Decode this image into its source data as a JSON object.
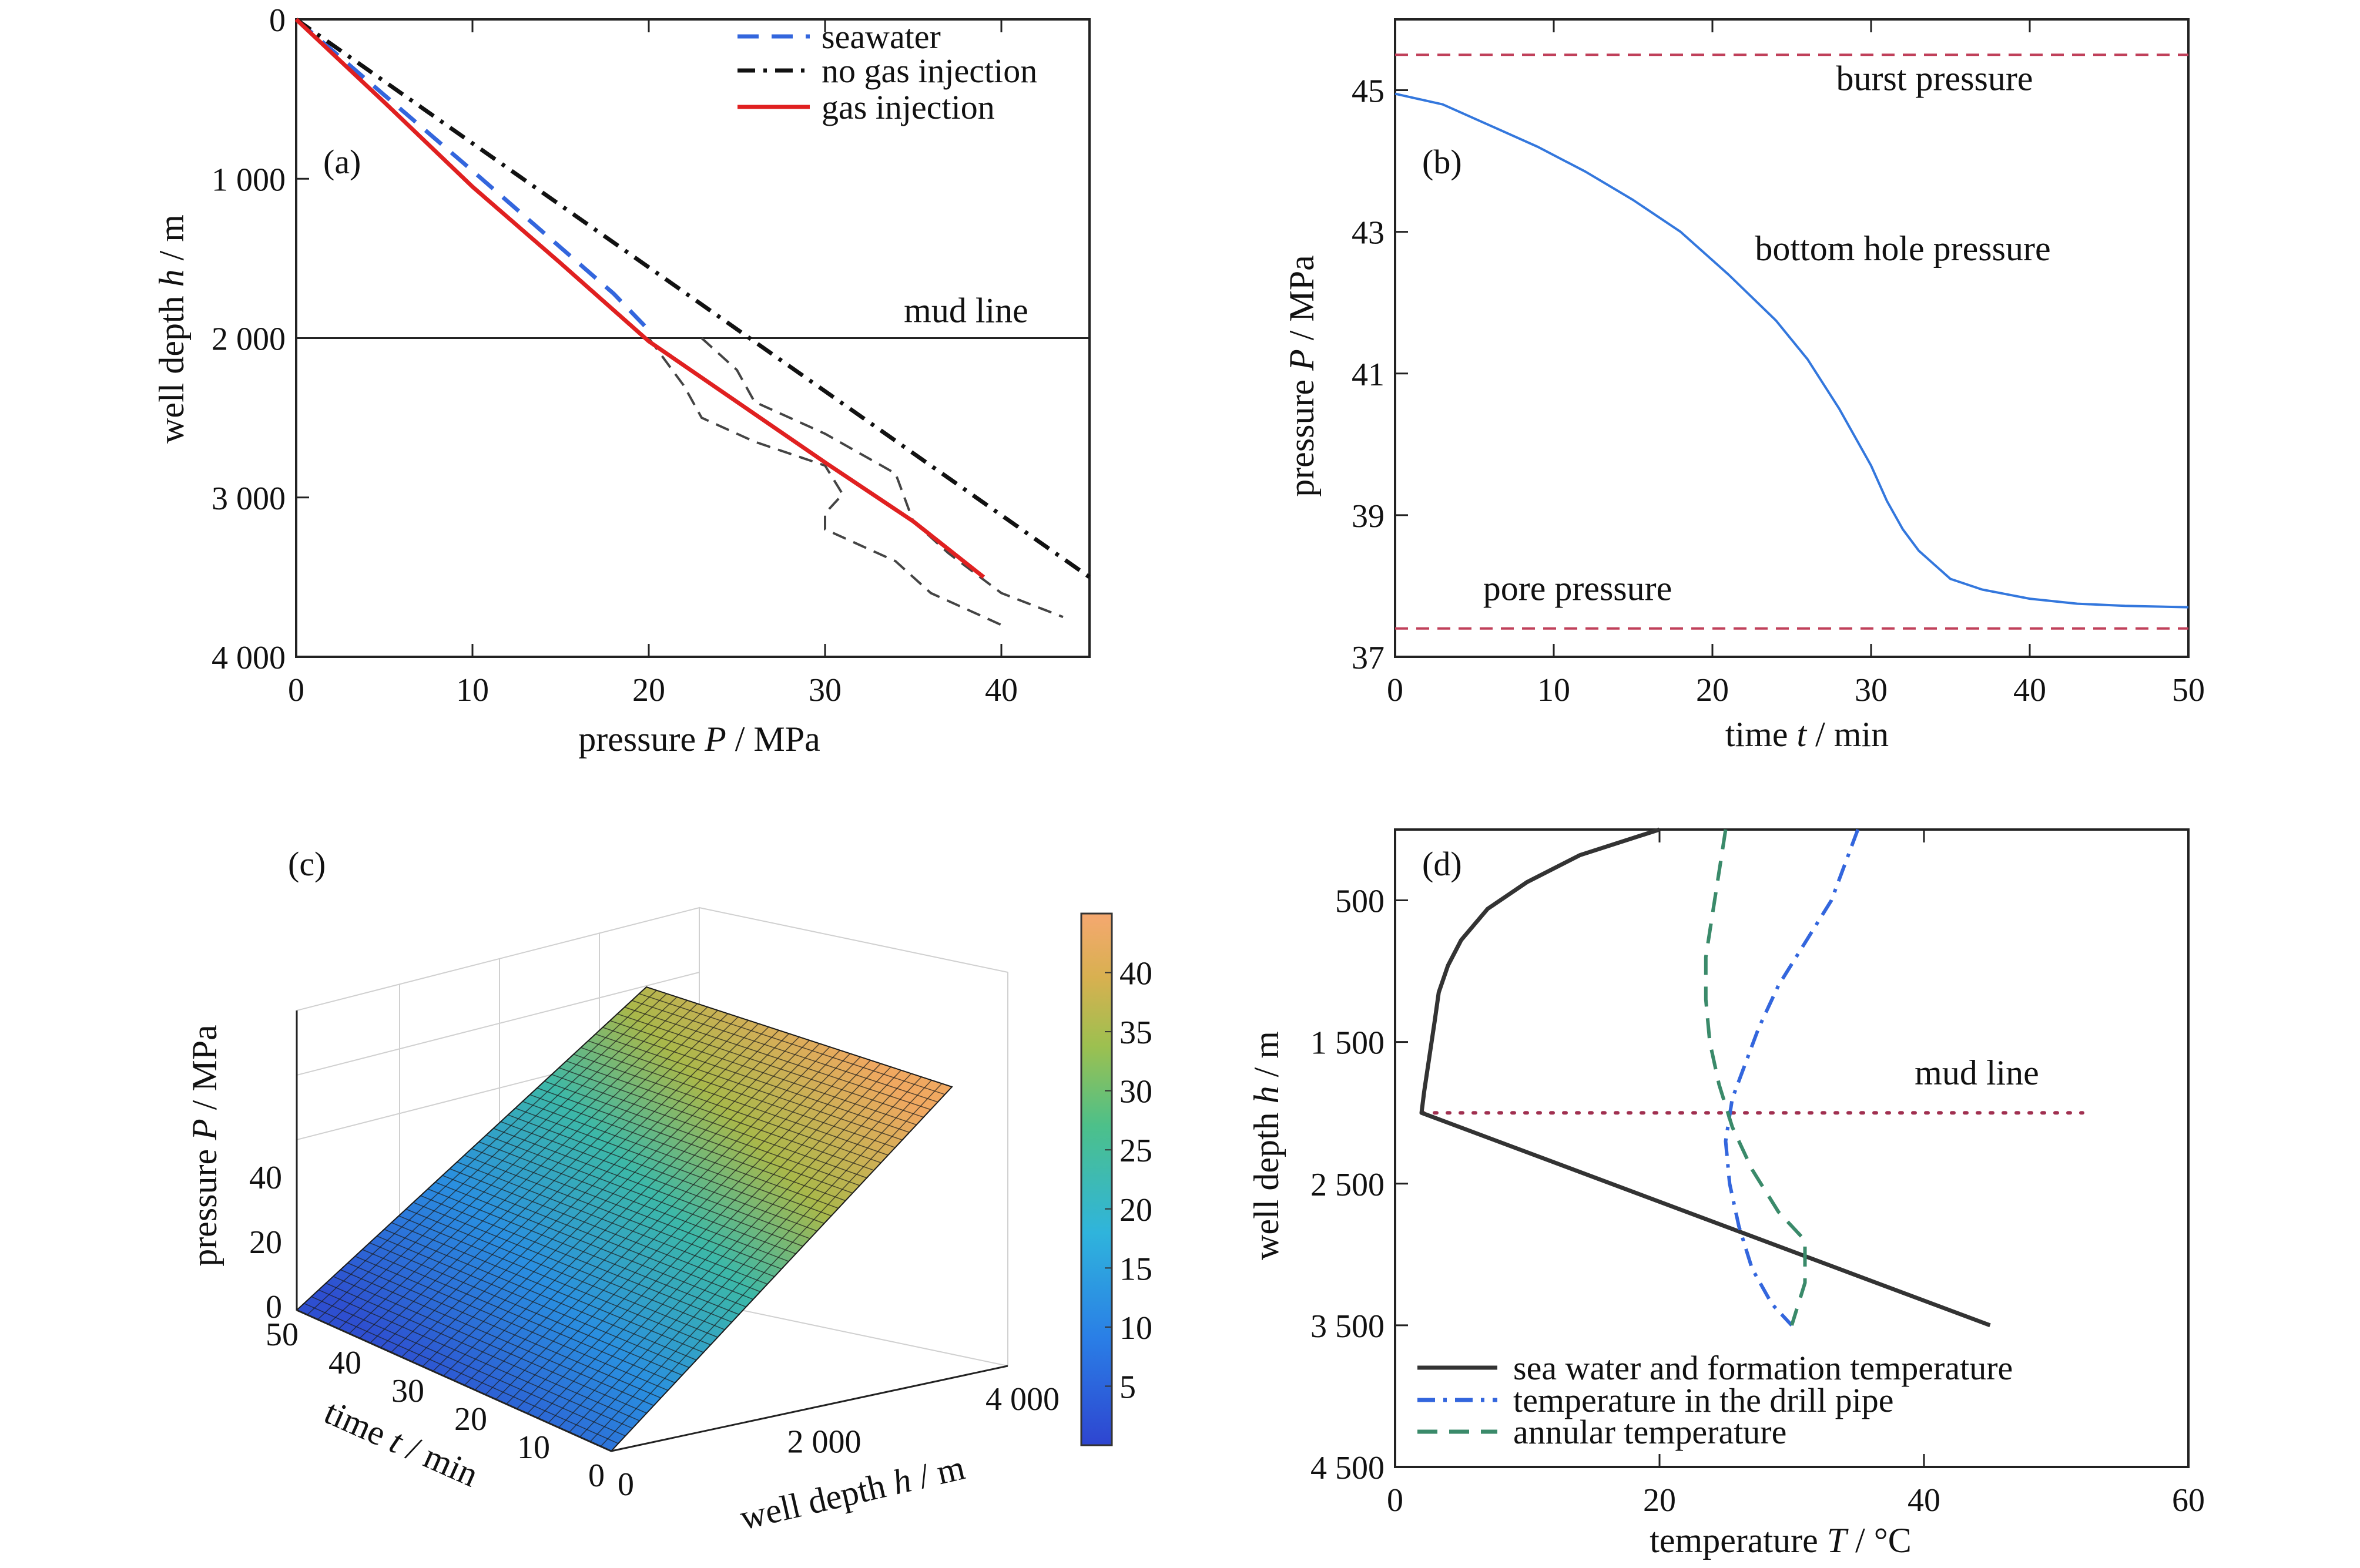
{
  "colors": {
    "seawater": "#3366dd",
    "no_gas": "#111111",
    "gas": "#e02020",
    "envelope": "#444444",
    "burst": "#c0405a",
    "bhp": "#3377dd",
    "formation": "#333333",
    "drillpipe": "#3366dd",
    "annular": "#3a8a6a",
    "mudline_dotted": "#a03050"
  },
  "chart_data": [
    {
      "panel": "(a)",
      "type": "line",
      "xlabel_pre": "pressure ",
      "xlabel_var": "P",
      "xlabel_post": " / MPa",
      "ylabel_pre": "well depth ",
      "ylabel_var": "h",
      "ylabel_post": " / m",
      "xlim": [
        0,
        45
      ],
      "ylim": [
        0,
        4000
      ],
      "y_inverted": true,
      "xticks": [
        0,
        10,
        20,
        30,
        40
      ],
      "xtick_labels": [
        "0",
        "10",
        "20",
        "30",
        "40"
      ],
      "yticks": [
        0,
        1000,
        2000,
        3000,
        4000
      ],
      "ytick_labels": [
        "0",
        "1 000",
        "2 000",
        "3 000",
        "4 000"
      ],
      "legend_position": "top-right",
      "annotations": [
        {
          "text": "mud line",
          "x": 38,
          "y": 1900
        }
      ],
      "mudline_depth": 2000,
      "series": [
        {
          "name": "seawater",
          "style": "dashed",
          "x": [
            0,
            10,
            18,
            20
          ],
          "y": [
            0,
            950,
            1720,
            1950
          ]
        },
        {
          "name": "no gas injection",
          "style": "dashdot",
          "x": [
            0,
            45
          ],
          "y": [
            0,
            3500
          ]
        },
        {
          "name": "gas injection",
          "style": "solid",
          "x": [
            0,
            5,
            10,
            15,
            20,
            25,
            30,
            35,
            39
          ],
          "y": [
            0,
            520,
            1050,
            1530,
            2020,
            2400,
            2780,
            3150,
            3500
          ]
        }
      ],
      "envelope": [
        {
          "x": [
            23,
            25,
            26,
            30,
            34,
            35,
            37,
            40,
            43.5
          ],
          "y": [
            2000,
            2200,
            2400,
            2600,
            2850,
            3150,
            3350,
            3600,
            3750
          ]
        },
        {
          "x": [
            20,
            22,
            23,
            26,
            30,
            31,
            30,
            30,
            34,
            36,
            38,
            40
          ],
          "y": [
            2000,
            2300,
            2500,
            2650,
            2800,
            2980,
            3100,
            3200,
            3400,
            3600,
            3700,
            3800
          ]
        }
      ]
    },
    {
      "panel": "(b)",
      "type": "line",
      "xlabel_pre": "time  ",
      "xlabel_var": "t",
      "xlabel_post": " / min",
      "ylabel_pre": "pressure ",
      "ylabel_var": "P",
      "ylabel_post": " / MPa",
      "xlim": [
        0,
        50
      ],
      "ylim": [
        37,
        46
      ],
      "xticks": [
        0,
        10,
        20,
        30,
        40,
        50
      ],
      "xtick_labels": [
        "0",
        "10",
        "20",
        "30",
        "40",
        "50"
      ],
      "yticks": [
        37,
        39,
        41,
        43,
        45
      ],
      "ytick_labels": [
        "37",
        "39",
        "41",
        "43",
        "45"
      ],
      "burst_pressure": 45.5,
      "pore_pressure": 37.4,
      "annotations": [
        {
          "text": "burst pressure",
          "x": 34,
          "y": 45.0
        },
        {
          "text": "bottom hole pressure",
          "x": 32,
          "y": 42.6
        },
        {
          "text": "pore pressure",
          "x": 11.5,
          "y": 37.8
        }
      ],
      "series": [
        {
          "name": "bottom hole pressure",
          "x": [
            0,
            3,
            6,
            9,
            12,
            15,
            18,
            21,
            24,
            26,
            28,
            30,
            31,
            32,
            33,
            35,
            37,
            40,
            43,
            46,
            50
          ],
          "y": [
            44.95,
            44.8,
            44.5,
            44.2,
            43.85,
            43.45,
            43.0,
            42.4,
            41.75,
            41.2,
            40.5,
            39.7,
            39.2,
            38.8,
            38.5,
            38.1,
            37.95,
            37.82,
            37.75,
            37.72,
            37.7
          ]
        }
      ]
    },
    {
      "panel": "(c)",
      "type": "surface",
      "zlabel_pre": "pressure ",
      "zlabel_var": "P",
      "zlabel_post": " / MPa",
      "tlabel_pre": "time ",
      "tlabel_var": "t",
      "tlabel_post": " / min",
      "hlabel_pre": "well depth ",
      "hlabel_var": "h",
      "hlabel_post": " / m",
      "zticks": [
        "0",
        "20",
        "40"
      ],
      "tticks": [
        "0",
        "10",
        "20",
        "30",
        "40",
        "50"
      ],
      "hticks": [
        "0",
        "2 000",
        "4 000"
      ],
      "colorbar_ticks": [
        "5",
        "10",
        "15",
        "20",
        "25",
        "30",
        "35",
        "40"
      ],
      "colorbar_range": [
        0,
        45
      ],
      "pressure_at_max_depth_t0": 45,
      "pressure_at_max_depth_t50": 38
    },
    {
      "panel": "(d)",
      "type": "line",
      "xlabel_pre": "temperature ",
      "xlabel_var": "T",
      "xlabel_post": " / °C",
      "ylabel_pre": "well depth ",
      "ylabel_var": "h",
      "ylabel_post": " / m",
      "xlim": [
        0,
        60
      ],
      "ylim": [
        0,
        4500
      ],
      "y_inverted": true,
      "xticks": [
        0,
        20,
        40,
        60
      ],
      "xtick_labels": [
        "0",
        "20",
        "40",
        "60"
      ],
      "yticks": [
        500,
        1500,
        2500,
        3500,
        4500
      ],
      "ytick_labels": [
        "500",
        "1 500",
        "2 500",
        "3 500",
        "4 500"
      ],
      "mudline_depth": 2000,
      "annotations": [
        {
          "text": "mud line",
          "x": 44,
          "y": 1800
        }
      ],
      "legend_position": "bottom-left",
      "series": [
        {
          "name": "sea water and formation temperature",
          "style": "solid",
          "x": [
            20,
            14,
            10,
            7,
            5,
            4,
            3.3,
            3,
            2.6,
            2.2,
            2,
            45
          ],
          "y": [
            0,
            180,
            370,
            560,
            780,
            960,
            1150,
            1350,
            1600,
            1850,
            2000,
            3500
          ]
        },
        {
          "name": "temperature in the drill pipe",
          "style": "dashdot",
          "x": [
            35,
            33,
            31,
            29,
            27.5,
            26.5,
            25.5,
            25,
            25.3,
            26,
            27,
            28.5,
            30
          ],
          "y": [
            0,
            500,
            800,
            1100,
            1400,
            1650,
            1900,
            2200,
            2500,
            2800,
            3100,
            3350,
            3500
          ]
        },
        {
          "name": "annular temperature",
          "style": "dashed",
          "x": [
            25,
            24.5,
            24,
            23.5,
            23.5,
            23.8,
            24.5,
            25.5,
            27,
            29,
            31,
            31,
            30
          ],
          "y": [
            0,
            300,
            600,
            900,
            1200,
            1500,
            1800,
            2100,
            2400,
            2700,
            2900,
            3200,
            3500
          ]
        }
      ]
    }
  ]
}
